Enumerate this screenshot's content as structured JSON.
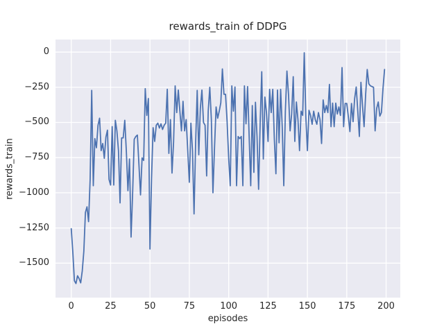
{
  "chart_data": {
    "type": "line",
    "title": "rewards_train of DDPG",
    "xlabel": "episodes",
    "ylabel": "rewards_train",
    "x_ticks": [
      0,
      25,
      50,
      75,
      100,
      125,
      150,
      175,
      200
    ],
    "y_ticks": [
      0,
      -250,
      -500,
      -750,
      -1000,
      -1250,
      -1500
    ],
    "xlim": [
      -10,
      209
    ],
    "ylim": [
      -1745,
      89
    ],
    "grid": true,
    "legend": false,
    "style": "seaborn-darkgrid",
    "line_color": "#4c72b0",
    "axes_bg": "#eaeaf2",
    "grid_color": "#ffffff",
    "text_color": "#262626",
    "x_start": 0,
    "x_step": 1,
    "series": [
      {
        "name": "rewards_train",
        "values": [
          -1255,
          -1420,
          -1625,
          -1645,
          -1590,
          -1610,
          -1640,
          -1555,
          -1415,
          -1140,
          -1100,
          -1205,
          -905,
          -272,
          -950,
          -615,
          -680,
          -520,
          -470,
          -700,
          -650,
          -755,
          -605,
          -555,
          -905,
          -945,
          -530,
          -945,
          -485,
          -560,
          -700,
          -1072,
          -610,
          -610,
          -485,
          -705,
          -985,
          -760,
          -1315,
          -1000,
          -620,
          -600,
          -590,
          -800,
          -1015,
          -752,
          -770,
          -260,
          -450,
          -330,
          -1400,
          -900,
          -537,
          -635,
          -520,
          -505,
          -540,
          -510,
          -550,
          -520,
          -505,
          -264,
          -720,
          -480,
          -860,
          -640,
          -240,
          -430,
          -270,
          -420,
          -560,
          -350,
          -560,
          -480,
          -700,
          -925,
          -505,
          -700,
          -1150,
          -650,
          -272,
          -730,
          -400,
          -270,
          -500,
          -520,
          -880,
          -420,
          -250,
          -480,
          -1000,
          -680,
          -390,
          -470,
          -420,
          -360,
          -120,
          -300,
          -300,
          -495,
          -755,
          -950,
          -240,
          -420,
          -248,
          -950,
          -600,
          -615,
          -600,
          -950,
          -240,
          -510,
          -245,
          -600,
          -950,
          -380,
          -855,
          -357,
          -600,
          -975,
          -500,
          -140,
          -760,
          -320,
          -430,
          -635,
          -265,
          -430,
          -265,
          -620,
          -865,
          -270,
          -645,
          -265,
          -530,
          -950,
          -420,
          -135,
          -300,
          -560,
          -440,
          -175,
          -635,
          -355,
          -480,
          -700,
          -420,
          -450,
          -5,
          -460,
          -700,
          -414,
          -450,
          -513,
          -420,
          -480,
          -513,
          -430,
          -480,
          -650,
          -340,
          -430,
          -380,
          -430,
          -230,
          -530,
          -363,
          -530,
          -363,
          -440,
          -390,
          -450,
          -110,
          -530,
          -365,
          -365,
          -460,
          -565,
          -365,
          -495,
          -330,
          -248,
          -420,
          -600,
          -215,
          -380,
          -530,
          -300,
          -124,
          -225,
          -240,
          -245,
          -250,
          -560,
          -400,
          -355,
          -455,
          -430,
          -260,
          -124
        ]
      }
    ]
  }
}
